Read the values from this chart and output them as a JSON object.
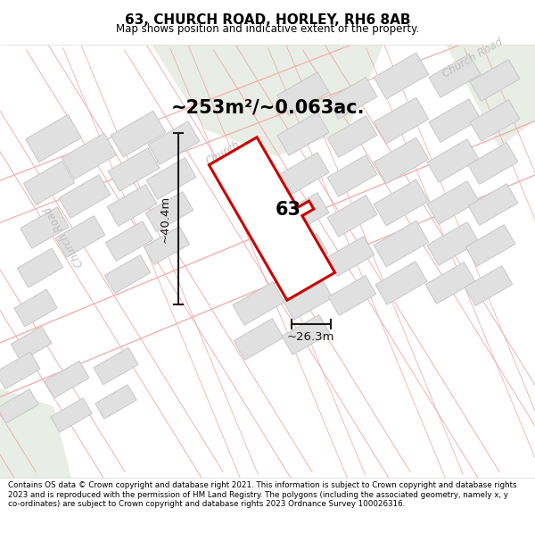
{
  "title": "63, CHURCH ROAD, HORLEY, RH6 8AB",
  "subtitle": "Map shows position and indicative extent of the property.",
  "area_text": "~253m²/~0.063ac.",
  "number_label": "63",
  "dim_vertical": "~40.4m",
  "dim_horizontal": "~26.3m",
  "footer_text": "Contains OS data © Crown copyright and database right 2021. This information is subject to Crown copyright and database rights 2023 and is reproduced with the permission of HM Land Registry. The polygons (including the associated geometry, namely x, y co-ordinates) are subject to Crown copyright and database rights 2023 Ordnance Survey 100026316.",
  "property_color": "#cc0000",
  "road_line_color": "#f0b0b0",
  "building_fill": "#e0e0e0",
  "building_edge": "#c8c8c8",
  "green_fill": "#e8ede5",
  "dim_color": "#1a1a1a",
  "road_label_color": "#c0c0c0",
  "bg_color": "#f8f8f8"
}
